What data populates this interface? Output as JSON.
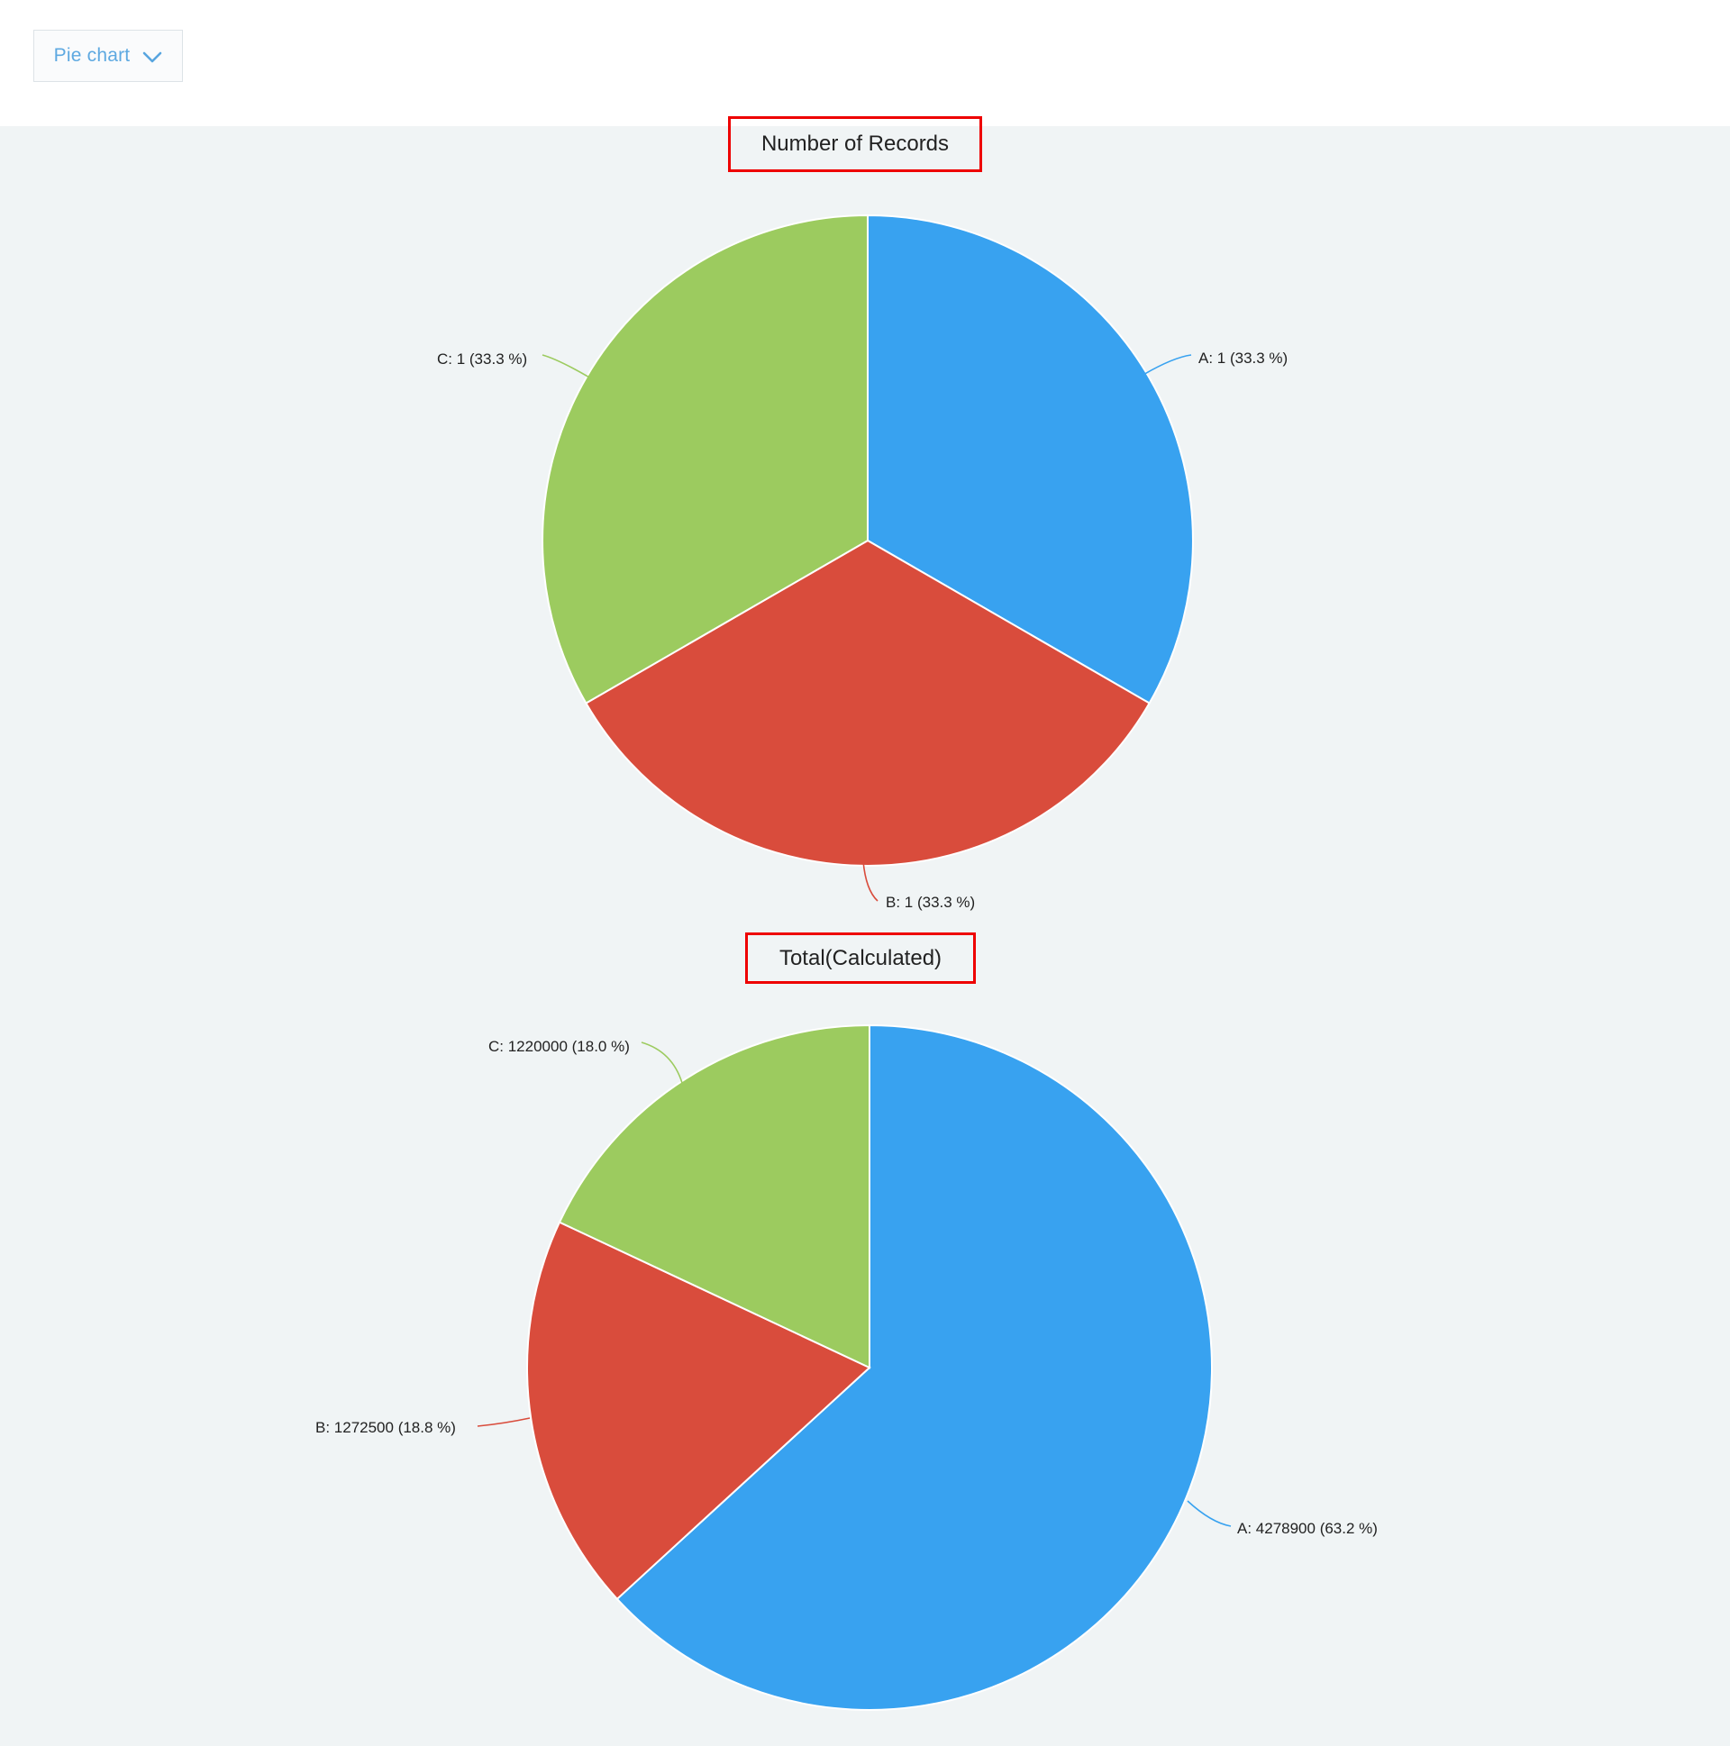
{
  "toolbar": {
    "chart_type_label": "Pie chart"
  },
  "colors": {
    "slice_blue": "#38a2f0",
    "slice_red": "#d94c3c",
    "slice_green": "#9ccb5f",
    "annotation_red": "#ee0000",
    "canvas_background": "#f0f4f5",
    "topbar_background": "#ffffff",
    "dropdown_text": "#5ea9e1",
    "label_text": "#222222"
  },
  "chart_data": [
    {
      "type": "pie",
      "title": "Number of Records",
      "categories": [
        "A",
        "B",
        "C"
      ],
      "values": [
        1,
        1,
        1
      ],
      "percents": [
        33.3,
        33.3,
        33.3
      ],
      "slice_labels": [
        "A: 1 (33.3 %)",
        "B: 1 (33.3 %)",
        "C: 1 (33.3 %)"
      ],
      "colors": [
        "#38a2f0",
        "#d94c3c",
        "#9ccb5f"
      ],
      "start_angle_deg": 0,
      "direction": "clockwise",
      "legend": "none",
      "labels_style": "outside-callout"
    },
    {
      "type": "pie",
      "title": "Total(Calculated)",
      "categories": [
        "A",
        "B",
        "C"
      ],
      "values": [
        4278900,
        1272500,
        1220000
      ],
      "percents": [
        63.2,
        18.8,
        18.0
      ],
      "slice_labels": [
        "A: 4278900 (63.2 %)",
        "B: 1272500 (18.8 %)",
        "C: 1220000 (18.0 %)"
      ],
      "colors": [
        "#38a2f0",
        "#d94c3c",
        "#9ccb5f"
      ],
      "start_angle_deg": 0,
      "direction": "clockwise",
      "legend": "none",
      "labels_style": "outside-callout"
    }
  ]
}
